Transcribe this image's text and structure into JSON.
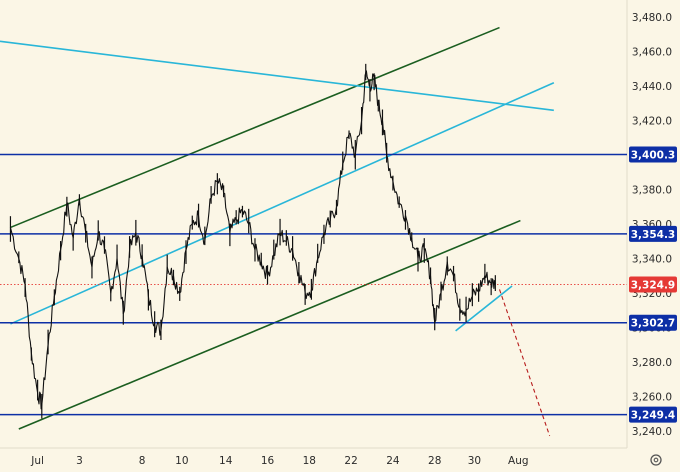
{
  "chart_data": {
    "type": "candlestick",
    "title": "",
    "xlabel": "",
    "ylabel": "",
    "grid": false,
    "ylim": [
      3230,
      3490
    ],
    "xlim": [
      -0.5,
      29.5
    ],
    "x_ticks": [
      {
        "x": 1.3,
        "label": "Jul"
      },
      {
        "x": 3.3,
        "label": "3"
      },
      {
        "x": 6.3,
        "label": "8"
      },
      {
        "x": 8.2,
        "label": "10"
      },
      {
        "x": 10.3,
        "label": "14"
      },
      {
        "x": 12.3,
        "label": "16"
      },
      {
        "x": 14.3,
        "label": "18"
      },
      {
        "x": 16.3,
        "label": "22"
      },
      {
        "x": 18.3,
        "label": "24"
      },
      {
        "x": 20.3,
        "label": "28"
      },
      {
        "x": 22.2,
        "label": "30"
      },
      {
        "x": 24.3,
        "label": "Aug"
      }
    ],
    "y_ticks": [
      3240,
      3260,
      3280,
      3300,
      3320,
      3340,
      3360,
      3380,
      3400,
      3420,
      3440,
      3460,
      3480
    ],
    "y_tick_labels": [
      "3,240.0",
      "3,260.0",
      "3,280.0",
      "3,300.0",
      "3,320.0",
      "3,340.0",
      "3,360.0",
      "3,380.0",
      "3,400.0",
      "3,420.0",
      "3,440.0",
      "3,460.0",
      "3,480.0"
    ],
    "price_path": [
      [
        0.0,
        3358
      ],
      [
        0.4,
        3340
      ],
      [
        0.7,
        3325
      ],
      [
        1.0,
        3285
      ],
      [
        1.3,
        3262
      ],
      [
        1.5,
        3255
      ],
      [
        1.8,
        3290
      ],
      [
        2.1,
        3318
      ],
      [
        2.4,
        3345
      ],
      [
        2.7,
        3372
      ],
      [
        3.0,
        3352
      ],
      [
        3.3,
        3375
      ],
      [
        3.6,
        3355
      ],
      [
        3.9,
        3335
      ],
      [
        4.2,
        3355
      ],
      [
        4.5,
        3345
      ],
      [
        4.8,
        3320
      ],
      [
        5.1,
        3340
      ],
      [
        5.4,
        3308
      ],
      [
        5.7,
        3345
      ],
      [
        6.0,
        3355
      ],
      [
        6.3,
        3342
      ],
      [
        6.6,
        3318
      ],
      [
        6.9,
        3302
      ],
      [
        7.2,
        3298
      ],
      [
        7.5,
        3335
      ],
      [
        7.8,
        3330
      ],
      [
        8.1,
        3320
      ],
      [
        8.4,
        3345
      ],
      [
        8.7,
        3360
      ],
      [
        9.0,
        3365
      ],
      [
        9.3,
        3350
      ],
      [
        9.6,
        3375
      ],
      [
        9.9,
        3385
      ],
      [
        10.2,
        3378
      ],
      [
        10.5,
        3355
      ],
      [
        10.8,
        3362
      ],
      [
        11.1,
        3368
      ],
      [
        11.4,
        3360
      ],
      [
        11.7,
        3345
      ],
      [
        12.0,
        3338
      ],
      [
        12.3,
        3330
      ],
      [
        12.6,
        3342
      ],
      [
        12.9,
        3355
      ],
      [
        13.2,
        3350
      ],
      [
        13.5,
        3345
      ],
      [
        13.8,
        3332
      ],
      [
        14.1,
        3320
      ],
      [
        14.4,
        3322
      ],
      [
        14.7,
        3340
      ],
      [
        15.0,
        3355
      ],
      [
        15.3,
        3362
      ],
      [
        15.6,
        3370
      ],
      [
        15.9,
        3395
      ],
      [
        16.2,
        3412
      ],
      [
        16.5,
        3400
      ],
      [
        16.8,
        3420
      ],
      [
        17.0,
        3448
      ],
      [
        17.2,
        3440
      ],
      [
        17.4,
        3445
      ],
      [
        17.6,
        3430
      ],
      [
        17.8,
        3420
      ],
      [
        18.0,
        3400
      ],
      [
        18.3,
        3385
      ],
      [
        18.6,
        3372
      ],
      [
        18.9,
        3365
      ],
      [
        19.2,
        3352
      ],
      [
        19.5,
        3340
      ],
      [
        19.8,
        3345
      ],
      [
        20.1,
        3330
      ],
      [
        20.3,
        3303
      ],
      [
        20.6,
        3320
      ],
      [
        20.9,
        3338
      ],
      [
        21.2,
        3330
      ],
      [
        21.5,
        3312
      ],
      [
        21.8,
        3310
      ],
      [
        22.1,
        3318
      ],
      [
        22.4,
        3322
      ],
      [
        22.7,
        3330
      ],
      [
        23.0,
        3326
      ],
      [
        23.2,
        3324.9
      ]
    ],
    "horizontal_levels": [
      {
        "value": 3400.3,
        "label": "3,400.3",
        "color": "#0d2fa6"
      },
      {
        "value": 3354.3,
        "label": "3,354.3",
        "color": "#0d2fa6"
      },
      {
        "value": 3302.7,
        "label": "3,302.7",
        "color": "#0d2fa6"
      },
      {
        "value": 3249.4,
        "label": "3,249.4",
        "color": "#0d2fa6"
      }
    ],
    "current_price": {
      "value": 3324.9,
      "label": "3,324.9",
      "color": "#e53935"
    },
    "trendlines": [
      {
        "name": "",
        "color": "#1b5e20",
        "x1": 0.0,
        "y1": 3358.0,
        "x2": 23.4,
        "y2": 3474.0
      },
      {
        "name": "",
        "color": "#1b5e20",
        "x1": 0.4,
        "y1": 3241.0,
        "x2": 24.4,
        "y2": 3362.0
      },
      {
        "name": "",
        "color": "#29b6d8",
        "x1": -0.5,
        "y1": 3466.0,
        "x2": 26.0,
        "y2": 3426.0
      },
      {
        "name": "",
        "color": "#29b6d8",
        "x1": 0.0,
        "y1": 3302.0,
        "x2": 26.0,
        "y2": 3442.0
      },
      {
        "name": "",
        "color": "#29b6d8",
        "x1": 21.3,
        "y1": 3298.0,
        "x2": 24.0,
        "y2": 3324.0
      }
    ],
    "projection": {
      "x1": 23.4,
      "y1": 3322.0,
      "x2": 25.8,
      "y2": 3237.0,
      "color": "#b71c1c"
    }
  },
  "ui": {
    "settings_icon": "settings-icon"
  }
}
